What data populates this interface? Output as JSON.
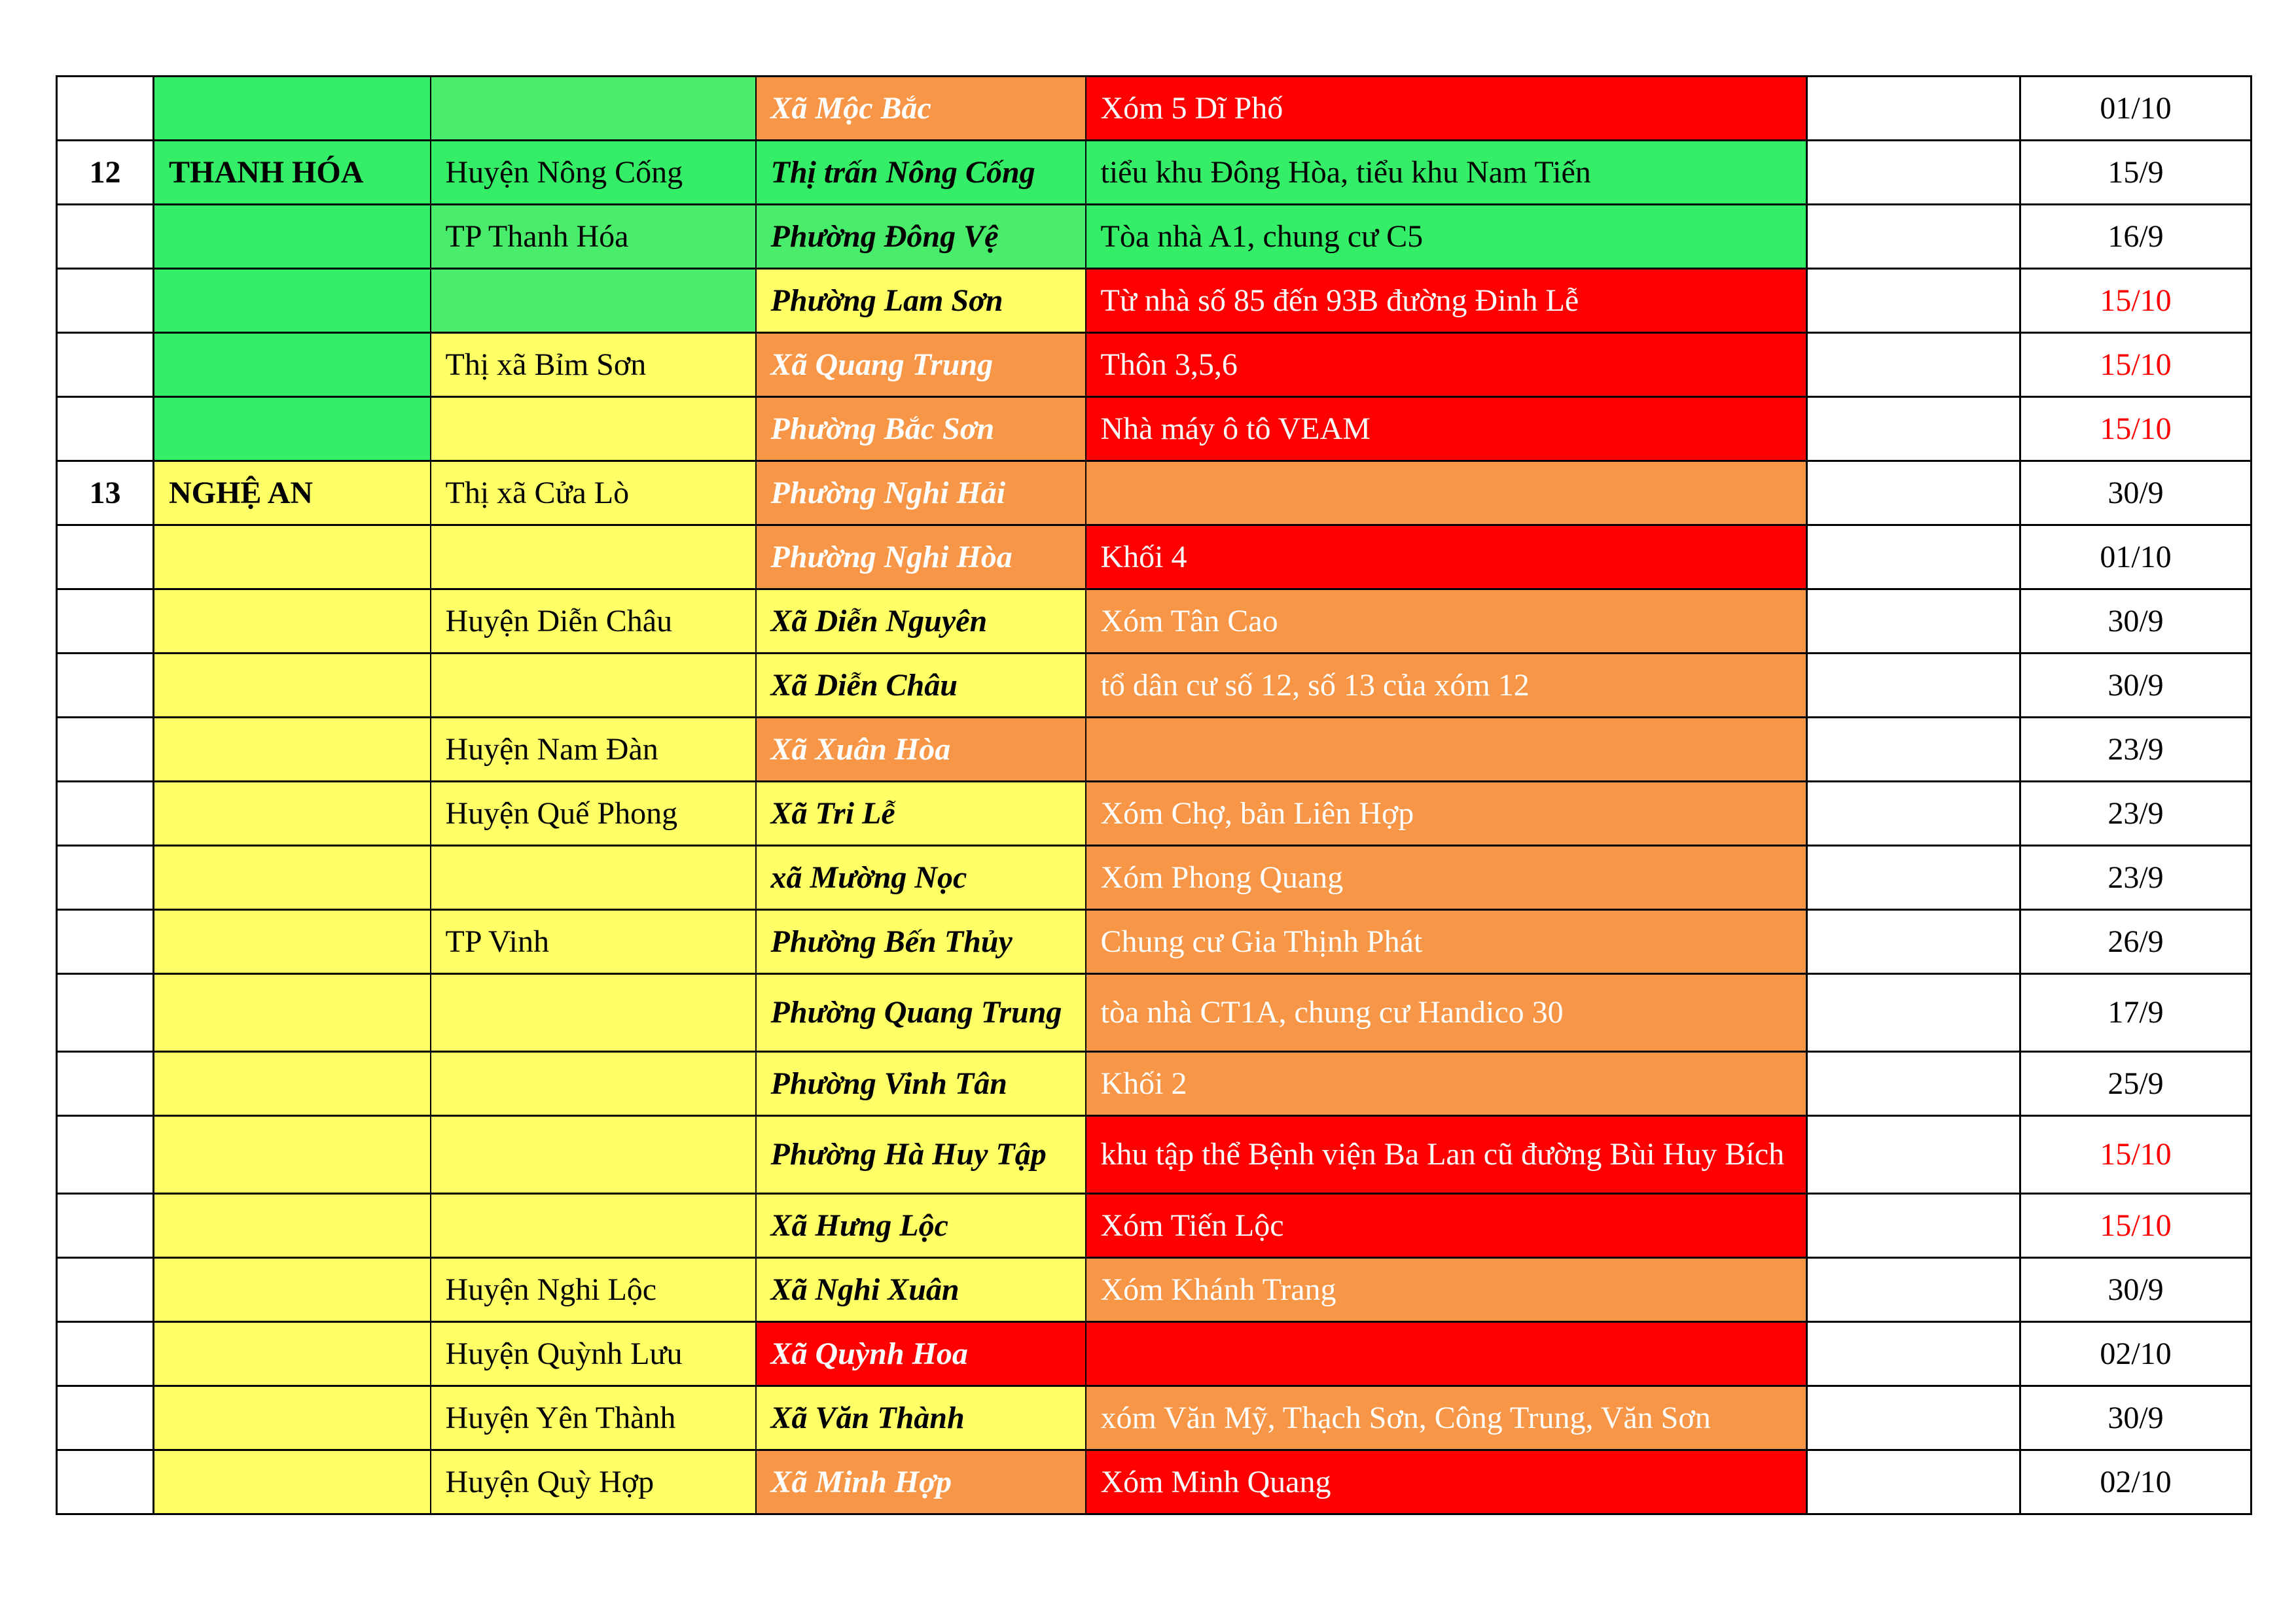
{
  "colors": {
    "white": "#ffffff",
    "green": "#33ee66",
    "lightgreen": "#4aec6b",
    "yellow": "#ffff66",
    "orange": "#f79646",
    "red": "#ff0000",
    "date_red": "#ff0000",
    "text_black": "#000000",
    "text_white": "#ffffff"
  },
  "rows": [
    {
      "no": "",
      "province": "",
      "province_fill": "green",
      "district": "",
      "district_fill": "lightgreen",
      "commune": "Xã Mộc Bắc",
      "commune_fill": "orange",
      "detail": "Xóm 5 Dĩ Phố",
      "detail_fill": "red",
      "date": "01/10",
      "date_red": false
    },
    {
      "no": "12",
      "province": "THANH HÓA",
      "province_fill": "green",
      "district": "Huyện Nông Cống",
      "district_fill": "green",
      "commune": "Thị trấn Nông Cống",
      "commune_fill": "green",
      "detail": "tiểu khu Đông Hòa, tiểu khu Nam Tiến",
      "detail_fill": "green",
      "date": "15/9",
      "date_red": false
    },
    {
      "no": "",
      "province": "",
      "province_fill": "green",
      "district": "TP Thanh Hóa",
      "district_fill": "lightgreen",
      "commune": "Phường Đông Vệ",
      "commune_fill": "lightgreen",
      "detail": "Tòa nhà A1, chung cư C5",
      "detail_fill": "green",
      "date": "16/9",
      "date_red": false
    },
    {
      "no": "",
      "province": "",
      "province_fill": "green",
      "district": "",
      "district_fill": "lightgreen",
      "commune": "Phường Lam Sơn",
      "commune_fill": "yellow",
      "detail": "Từ nhà số 85 đến 93B đường Đinh Lễ",
      "detail_fill": "red",
      "date": "15/10",
      "date_red": true
    },
    {
      "no": "",
      "province": "",
      "province_fill": "green",
      "district": "Thị xã Bỉm Sơn",
      "district_fill": "yellow",
      "commune": "Xã Quang Trung",
      "commune_fill": "orange",
      "detail": "Thôn 3,5,6",
      "detail_fill": "red",
      "date": "15/10",
      "date_red": true
    },
    {
      "no": "",
      "province": "",
      "province_fill": "green",
      "district": "",
      "district_fill": "yellow",
      "commune": "Phường Bắc Sơn",
      "commune_fill": "orange",
      "detail": "Nhà máy ô tô VEAM",
      "detail_fill": "red",
      "date": "15/10",
      "date_red": true
    },
    {
      "no": "13",
      "province": "NGHỆ AN",
      "province_fill": "yellow",
      "district": "Thị xã Cửa Lò",
      "district_fill": "yellow",
      "commune": "Phường Nghi Hải",
      "commune_fill": "orange",
      "detail": "",
      "detail_fill": "orange",
      "date": "30/9",
      "date_red": false
    },
    {
      "no": "",
      "province": "",
      "province_fill": "yellow",
      "district": "",
      "district_fill": "yellow",
      "commune": "Phường Nghi Hòa",
      "commune_fill": "orange",
      "detail": "Khối 4",
      "detail_fill": "red",
      "date": "01/10",
      "date_red": false
    },
    {
      "no": "",
      "province": "",
      "province_fill": "yellow",
      "district": "Huyện Diễn Châu",
      "district_fill": "yellow",
      "commune": "Xã Diễn Nguyên",
      "commune_fill": "yellow",
      "detail": "Xóm Tân Cao",
      "detail_fill": "orange",
      "date": "30/9",
      "date_red": false
    },
    {
      "no": "",
      "province": "",
      "province_fill": "yellow",
      "district": "",
      "district_fill": "yellow",
      "commune": "Xã Diễn Châu",
      "commune_fill": "yellow",
      "detail": "tổ dân cư số 12, số 13 của xóm 12",
      "detail_fill": "orange",
      "date": "30/9",
      "date_red": false
    },
    {
      "no": "",
      "province": "",
      "province_fill": "yellow",
      "district": "Huyện Nam Đàn",
      "district_fill": "yellow",
      "commune": "Xã Xuân Hòa",
      "commune_fill": "orange",
      "detail": "",
      "detail_fill": "orange",
      "date": "23/9",
      "date_red": false
    },
    {
      "no": "",
      "province": "",
      "province_fill": "yellow",
      "district": "Huyện Quế Phong",
      "district_fill": "yellow",
      "commune": "Xã Tri Lễ",
      "commune_fill": "yellow",
      "detail": "Xóm Chợ, bản Liên Hợp",
      "detail_fill": "orange",
      "date": "23/9",
      "date_red": false
    },
    {
      "no": "",
      "province": "",
      "province_fill": "yellow",
      "district": "",
      "district_fill": "yellow",
      "commune": "xã Mường Nọc",
      "commune_fill": "yellow",
      "detail": "Xóm Phong Quang",
      "detail_fill": "orange",
      "date": "23/9",
      "date_red": false
    },
    {
      "no": "",
      "province": "",
      "province_fill": "yellow",
      "district": "TP Vinh",
      "district_fill": "yellow",
      "commune": "Phường Bến Thủy",
      "commune_fill": "yellow",
      "detail": "Chung cư Gia Thịnh Phát",
      "detail_fill": "orange",
      "date": "26/9",
      "date_red": false
    },
    {
      "no": "",
      "province": "",
      "province_fill": "yellow",
      "district": "",
      "district_fill": "yellow",
      "commune": "Phường Quang Trung",
      "commune_fill": "yellow",
      "detail": "tòa nhà CT1A, chung cư Handico 30",
      "detail_fill": "orange",
      "date": "17/9",
      "date_red": false,
      "tall": true
    },
    {
      "no": "",
      "province": "",
      "province_fill": "yellow",
      "district": "",
      "district_fill": "yellow",
      "commune": "Phường Vinh Tân",
      "commune_fill": "yellow",
      "detail": "Khối 2",
      "detail_fill": "orange",
      "date": "25/9",
      "date_red": false
    },
    {
      "no": "",
      "province": "",
      "province_fill": "yellow",
      "district": "",
      "district_fill": "yellow",
      "commune": "Phường Hà Huy Tập",
      "commune_fill": "yellow",
      "detail": "khu tập thể Bệnh viện Ba Lan cũ đường Bùi Huy Bích",
      "detail_fill": "red",
      "date": "15/10",
      "date_red": true,
      "tall": true
    },
    {
      "no": "",
      "province": "",
      "province_fill": "yellow",
      "district": "",
      "district_fill": "yellow",
      "commune": "Xã Hưng Lộc",
      "commune_fill": "yellow",
      "detail": "Xóm Tiến Lộc",
      "detail_fill": "red",
      "date": "15/10",
      "date_red": true
    },
    {
      "no": "",
      "province": "",
      "province_fill": "yellow",
      "district": "Huyện Nghi Lộc",
      "district_fill": "yellow",
      "commune": "Xã Nghi Xuân",
      "commune_fill": "yellow",
      "detail": "Xóm Khánh Trang",
      "detail_fill": "orange",
      "date": "30/9",
      "date_red": false
    },
    {
      "no": "",
      "province": "",
      "province_fill": "yellow",
      "district": "Huyện Quỳnh Lưu",
      "district_fill": "yellow",
      "commune": "Xã Quỳnh Hoa",
      "commune_fill": "red",
      "detail": "",
      "detail_fill": "red",
      "date": "02/10",
      "date_red": false
    },
    {
      "no": "",
      "province": "",
      "province_fill": "yellow",
      "district": "Huyện Yên Thành",
      "district_fill": "yellow",
      "commune": "Xã Văn Thành",
      "commune_fill": "yellow",
      "detail": "xóm Văn Mỹ, Thạch Sơn, Công Trung, Văn Sơn",
      "detail_fill": "orange",
      "date": "30/9",
      "date_red": false
    },
    {
      "no": "",
      "province": "",
      "province_fill": "yellow",
      "district": "Huyện Quỳ Hợp",
      "district_fill": "yellow",
      "commune": "Xã Minh Hợp",
      "commune_fill": "orange",
      "detail": "Xóm Minh Quang",
      "detail_fill": "red",
      "date": "02/10",
      "date_red": false
    }
  ]
}
